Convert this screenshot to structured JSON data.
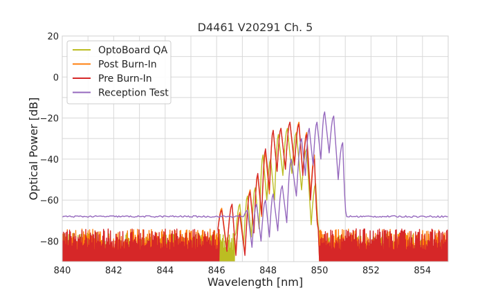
{
  "chart_data": {
    "type": "line",
    "title": "D4461 V20291 Ch. 5",
    "xlabel": "Wavelength [nm]",
    "ylabel": "Optical Power [dB]",
    "xlim": [
      840,
      855
    ],
    "ylim": [
      -90,
      20
    ],
    "xticks": [
      840,
      842,
      844,
      846,
      848,
      850,
      852,
      854
    ],
    "yticks": [
      20,
      0,
      -20,
      -40,
      -60,
      -80
    ],
    "ytick_labels": [
      "20",
      "0",
      "−20",
      "−40",
      "−60",
      "−80"
    ],
    "grid": true,
    "legend_position": "top-left",
    "series": [
      {
        "name": "OptoBoard QA",
        "color": "#bcbd22",
        "noise": {
          "from": 840,
          "to": 846.7,
          "floor": -90,
          "top": -76
        },
        "peaks_x": [
          846.9,
          847.2,
          847.5,
          847.8,
          848.1,
          848.4,
          848.75,
          849.1,
          849.5,
          849.85
        ],
        "peaks_y": [
          -62,
          -58,
          -54,
          -38,
          -40,
          -28,
          -25,
          -27,
          -35,
          -52
        ],
        "noise_after": {
          "from": 850.0,
          "to": 855,
          "floor": -90,
          "top": -76
        }
      },
      {
        "name": "Post Burn-In",
        "color": "#ff7f0e",
        "noise": {
          "from": 840,
          "to": 846.1,
          "floor": -90,
          "top": -74
        },
        "peaks_x": [
          846.2,
          846.6,
          846.9,
          847.3,
          847.6,
          847.9,
          848.2,
          848.5,
          848.85,
          849.2,
          849.5,
          849.8
        ],
        "peaks_y": [
          -64,
          -62,
          -66,
          -55,
          -48,
          -37,
          -26,
          -25,
          -22,
          -22,
          -27,
          -38
        ],
        "noise_after": {
          "from": 850.0,
          "to": 855,
          "floor": -90,
          "top": -74
        }
      },
      {
        "name": "Pre Burn-In",
        "color": "#d62728",
        "noise": {
          "from": 840,
          "to": 846.1,
          "floor": -90,
          "top": -74
        },
        "peaks_x": [
          846.2,
          846.6,
          846.9,
          847.3,
          847.6,
          847.9,
          848.2,
          848.5,
          848.85,
          849.2,
          849.5,
          849.8
        ],
        "peaks_y": [
          -65,
          -62,
          -67,
          -56,
          -47,
          -35,
          -26,
          -25,
          -22,
          -23,
          -28,
          -40
        ],
        "noise_after": {
          "from": 850.0,
          "to": 855,
          "floor": -90,
          "top": -74
        }
      },
      {
        "name": "Reception Test",
        "color": "#9467bd",
        "baseline": -68,
        "peaks_x": [
          847.2,
          847.55,
          847.9,
          848.2,
          848.55,
          848.9,
          849.3,
          849.6,
          849.9,
          850.2,
          850.55,
          850.9
        ],
        "peaks_y": [
          -65,
          -62,
          -60,
          -57,
          -53,
          -40,
          -30,
          -25,
          -22,
          -17,
          -19,
          -32
        ]
      }
    ]
  }
}
